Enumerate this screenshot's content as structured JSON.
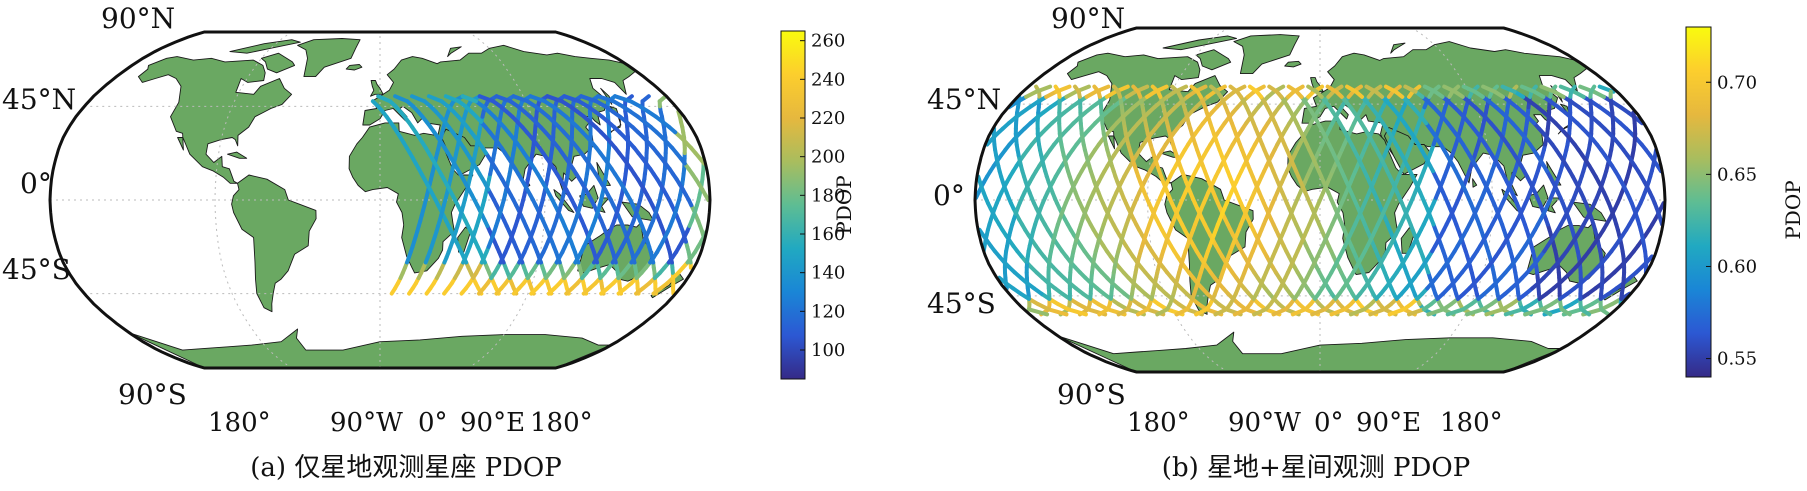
{
  "colors": {
    "land": "#6aa862",
    "land_edge": "#1a1a1a",
    "ocean": "#ffffff",
    "grid": "#bbbbbb",
    "parula": [
      "#352a87",
      "#2c58d3",
      "#1a86d6",
      "#21a9c1",
      "#5ebd93",
      "#a9bd5e",
      "#e6b83e",
      "#fcce2d",
      "#f9fb0e"
    ]
  },
  "chart_data": [
    {
      "type": "scatter",
      "subtype": "world-map-ground-track",
      "projection": "robinson",
      "caption": "(a) 仅星地观测星座 PDOP",
      "lat_labels": [
        "90°N",
        "45°N",
        "0°",
        "45°S",
        "90°S"
      ],
      "lon_labels": [
        "180°",
        "90°W",
        "0°",
        "90°E",
        "180°"
      ],
      "colorbar": {
        "label": "PDOP",
        "range": [
          85,
          265
        ],
        "ticks": [
          "100",
          "120",
          "140",
          "160",
          "180",
          "200",
          "220",
          "240",
          "260"
        ],
        "tick_values": [
          100,
          120,
          140,
          160,
          180,
          200,
          220,
          240,
          260
        ]
      },
      "coverage": {
        "lon_range": [
          25,
          195
        ],
        "lat_range": [
          -45,
          50
        ],
        "value_range": [
          90,
          240
        ]
      }
    },
    {
      "type": "scatter",
      "subtype": "world-map-ground-track",
      "projection": "robinson",
      "caption": "(b) 星地+星间观测 PDOP",
      "lat_labels": [
        "90°N",
        "45°N",
        "0°",
        "45°S",
        "90°S"
      ],
      "lon_labels": [
        "180°",
        "90°W",
        "0°",
        "90°E",
        "180°"
      ],
      "colorbar": {
        "label": "PDOP",
        "range": [
          0.54,
          0.73
        ],
        "ticks": [
          "0.55",
          "0.60",
          "0.65",
          "0.70"
        ],
        "tick_values": [
          0.55,
          0.6,
          0.65,
          0.7
        ]
      },
      "coverage": {
        "lon_range": [
          -180,
          180
        ],
        "lat_range": [
          -55,
          55
        ],
        "value_range": [
          0.55,
          0.71
        ]
      }
    }
  ]
}
